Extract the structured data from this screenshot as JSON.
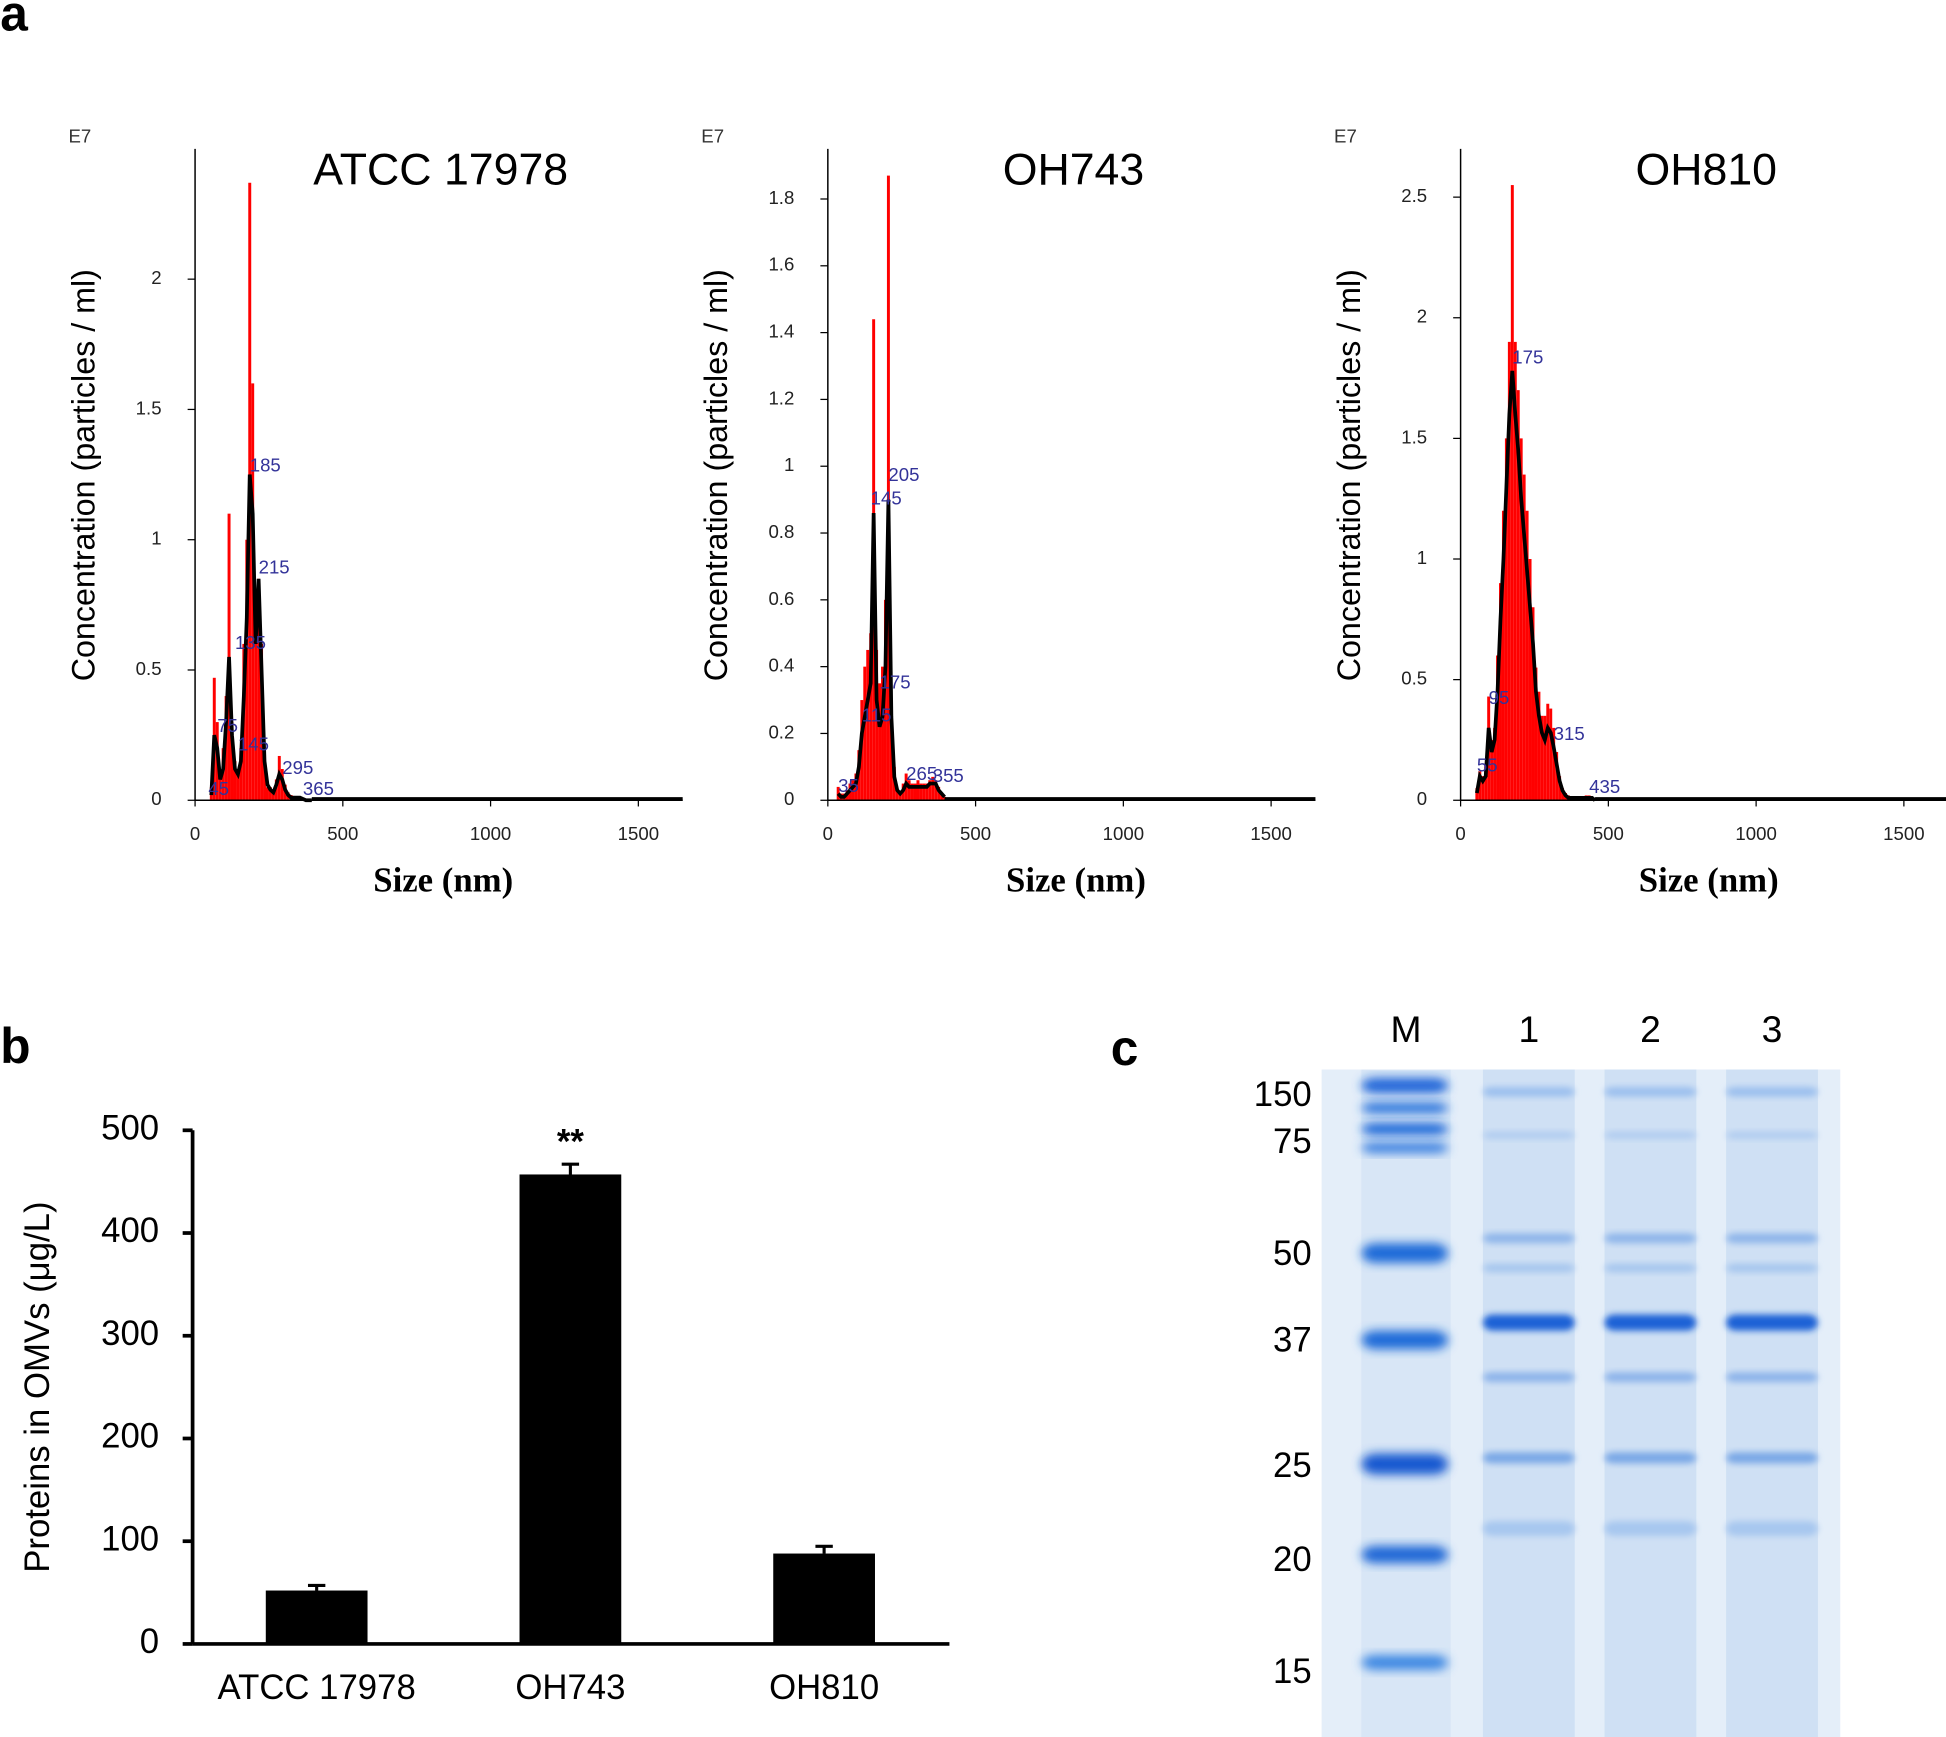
{
  "panel_labels": [
    "a",
    "b",
    "c"
  ],
  "chart_data": [
    {
      "type": "histogram",
      "title": "ATCC 17978",
      "x_label": "Size (nm)",
      "y_label": "Concentration (particles / ml)",
      "y_multiplier": "E7",
      "xlim": [
        0,
        1650
      ],
      "xticks": [
        0,
        500,
        1000,
        1500
      ],
      "ylim": [
        0,
        2.5
      ],
      "yticks": [
        0,
        0.5,
        1.0,
        1.5,
        2.0
      ],
      "color": "#ff0000",
      "bins": [
        50,
        60,
        70,
        80,
        90,
        100,
        110,
        120,
        130,
        140,
        150,
        160,
        170,
        180,
        190,
        200,
        210,
        220,
        230,
        240,
        250,
        260,
        270,
        280,
        290,
        300,
        310,
        320,
        330,
        340,
        350,
        360,
        370,
        380,
        390,
        400
      ],
      "counts": [
        0.05,
        0.47,
        0.3,
        0.1,
        0.2,
        0.4,
        1.1,
        0.3,
        0.15,
        0.1,
        0.2,
        0.6,
        1.0,
        2.37,
        1.6,
        0.75,
        0.85,
        0.6,
        0.15,
        0.05,
        0.05,
        0.03,
        0.08,
        0.17,
        0.12,
        0.06,
        0.03,
        0.02,
        0.01,
        0.01,
        0.01,
        0.01,
        0.005,
        0.005,
        0
      ],
      "line": {
        "color": "#000000",
        "x": [
          55,
          65,
          75,
          85,
          95,
          105,
          115,
          125,
          135,
          145,
          155,
          165,
          175,
          185,
          195,
          205,
          215,
          225,
          235,
          245,
          255,
          265,
          275,
          285,
          295,
          305,
          315,
          325,
          335,
          345,
          355,
          365,
          375,
          385,
          395
        ],
        "values": [
          0.02,
          0.25,
          0.2,
          0.08,
          0.12,
          0.3,
          0.55,
          0.25,
          0.12,
          0.1,
          0.15,
          0.4,
          0.7,
          1.25,
          1.1,
          0.6,
          0.85,
          0.5,
          0.15,
          0.06,
          0.04,
          0.03,
          0.06,
          0.1,
          0.08,
          0.04,
          0.02,
          0.01,
          0.01,
          0.01,
          0.01,
          0.005,
          0,
          0,
          0
        ]
      },
      "peaks": {
        "color": "#333399",
        "x": [
          185,
          215,
          135,
          75,
          145,
          295,
          365,
          45
        ],
        "y": [
          1.28,
          0.89,
          0.6,
          0.28,
          0.21,
          0.12,
          0.04,
          0.04
        ]
      }
    },
    {
      "type": "histogram",
      "title": "OH743",
      "x_label": "Size (nm)",
      "y_label": "Concentration (particles / ml)",
      "y_multiplier": "E7",
      "xlim": [
        0,
        1650
      ],
      "xticks": [
        0,
        500,
        1000,
        1500
      ],
      "ylim": [
        0,
        1.95
      ],
      "yticks": [
        0,
        0.2,
        0.4,
        0.6,
        0.8,
        1.0,
        1.2,
        1.4,
        1.6,
        1.8
      ],
      "color": "#ff0000",
      "bins": [
        30,
        40,
        50,
        60,
        70,
        80,
        90,
        100,
        110,
        120,
        130,
        140,
        150,
        160,
        170,
        180,
        190,
        200,
        210,
        220,
        230,
        240,
        250,
        260,
        270,
        280,
        290,
        300,
        310,
        320,
        330,
        340,
        350,
        360,
        370,
        380,
        390,
        400
      ],
      "counts": [
        0.04,
        0.02,
        0.02,
        0.03,
        0.05,
        0.06,
        0.08,
        0.15,
        0.3,
        0.4,
        0.45,
        0.5,
        1.44,
        0.45,
        0.35,
        0.4,
        0.6,
        1.87,
        0.3,
        0.1,
        0.03,
        0.02,
        0.05,
        0.08,
        0.06,
        0.05,
        0.05,
        0.06,
        0.05,
        0.05,
        0.05,
        0.06,
        0.07,
        0.06,
        0.04,
        0.02,
        0.01
      ],
      "line": {
        "color": "#000000",
        "x": [
          35,
          45,
          55,
          65,
          75,
          85,
          95,
          105,
          115,
          125,
          135,
          145,
          155,
          165,
          175,
          185,
          195,
          205,
          215,
          225,
          235,
          245,
          255,
          265,
          275,
          285,
          295,
          305,
          315,
          325,
          335,
          345,
          355,
          365,
          375,
          385,
          395
        ],
        "values": [
          0.02,
          0.01,
          0.01,
          0.02,
          0.03,
          0.04,
          0.05,
          0.1,
          0.2,
          0.25,
          0.3,
          0.35,
          0.86,
          0.3,
          0.22,
          0.25,
          0.4,
          0.9,
          0.25,
          0.07,
          0.03,
          0.02,
          0.03,
          0.05,
          0.04,
          0.04,
          0.04,
          0.04,
          0.04,
          0.04,
          0.04,
          0.05,
          0.05,
          0.05,
          0.03,
          0.02,
          0.01
        ]
      },
      "peaks": {
        "color": "#333399",
        "x": [
          205,
          145,
          175,
          115,
          265,
          355,
          35
        ],
        "y": [
          0.97,
          0.9,
          0.35,
          0.25,
          0.075,
          0.07,
          0.04
        ]
      }
    },
    {
      "type": "histogram",
      "title": "OH810",
      "x_label": "Size (nm)",
      "y_label": "Concentration (particles / ml)",
      "y_multiplier": "E7",
      "xlim": [
        0,
        1650
      ],
      "xticks": [
        0,
        500,
        1000,
        1500
      ],
      "ylim": [
        0,
        2.7
      ],
      "yticks": [
        0,
        0.5,
        1.0,
        1.5,
        2.0,
        2.5
      ],
      "color": "#ff0000",
      "bins": [
        50,
        60,
        70,
        80,
        90,
        100,
        110,
        120,
        130,
        140,
        150,
        160,
        170,
        180,
        190,
        200,
        210,
        220,
        230,
        240,
        250,
        260,
        270,
        280,
        290,
        300,
        310,
        320,
        330,
        340,
        350,
        360,
        370,
        380,
        390,
        400,
        410,
        420,
        430,
        440,
        450,
        460
      ],
      "counts": [
        0.05,
        0.12,
        0.1,
        0.15,
        0.43,
        0.25,
        0.3,
        0.6,
        0.9,
        1.2,
        1.5,
        1.9,
        2.55,
        1.9,
        1.7,
        1.5,
        1.35,
        1.2,
        1.0,
        0.8,
        0.55,
        0.45,
        0.35,
        0.35,
        0.4,
        0.38,
        0.3,
        0.2,
        0.1,
        0.05,
        0.03,
        0.02,
        0.01,
        0.01,
        0.01,
        0.01,
        0.01,
        0.02,
        0.02,
        0.01,
        0.005
      ],
      "line": {
        "color": "#000000",
        "x": [
          55,
          65,
          75,
          85,
          95,
          105,
          115,
          125,
          135,
          145,
          155,
          165,
          175,
          185,
          195,
          205,
          215,
          225,
          235,
          245,
          255,
          265,
          275,
          285,
          295,
          305,
          315,
          325,
          335,
          345,
          355,
          365,
          375,
          385,
          395,
          405,
          415,
          425,
          435,
          445,
          455
        ],
        "values": [
          0.03,
          0.1,
          0.08,
          0.1,
          0.3,
          0.2,
          0.25,
          0.45,
          0.75,
          1.0,
          1.3,
          1.6,
          1.78,
          1.6,
          1.45,
          1.25,
          1.1,
          0.95,
          0.8,
          0.65,
          0.45,
          0.35,
          0.28,
          0.25,
          0.3,
          0.28,
          0.22,
          0.15,
          0.08,
          0.04,
          0.02,
          0.01,
          0.01,
          0.01,
          0.01,
          0.01,
          0.01,
          0.01,
          0.01,
          0.01,
          0
        ]
      },
      "peaks": {
        "color": "#333399",
        "x": [
          175,
          95,
          315,
          435,
          55
        ],
        "y": [
          1.83,
          0.42,
          0.27,
          0.05,
          0.14
        ]
      }
    },
    {
      "type": "bar",
      "y_label": "Proteins in OMVs (μg/L)",
      "categories": [
        "ATCC 17978",
        "OH743",
        "OH810"
      ],
      "values": [
        52,
        457,
        88
      ],
      "errors": [
        5,
        10,
        7
      ],
      "color": "#000000",
      "ylim": [
        0,
        500
      ],
      "yticks": [
        0,
        100,
        200,
        300,
        400,
        500
      ],
      "annotations": [
        {
          "text": "**",
          "x": "OH743"
        }
      ]
    }
  ],
  "gel": {
    "lane_labels": [
      "M",
      "1",
      "2",
      "3"
    ],
    "marker_sizes": [
      150,
      75,
      50,
      37,
      25,
      20,
      15
    ]
  }
}
